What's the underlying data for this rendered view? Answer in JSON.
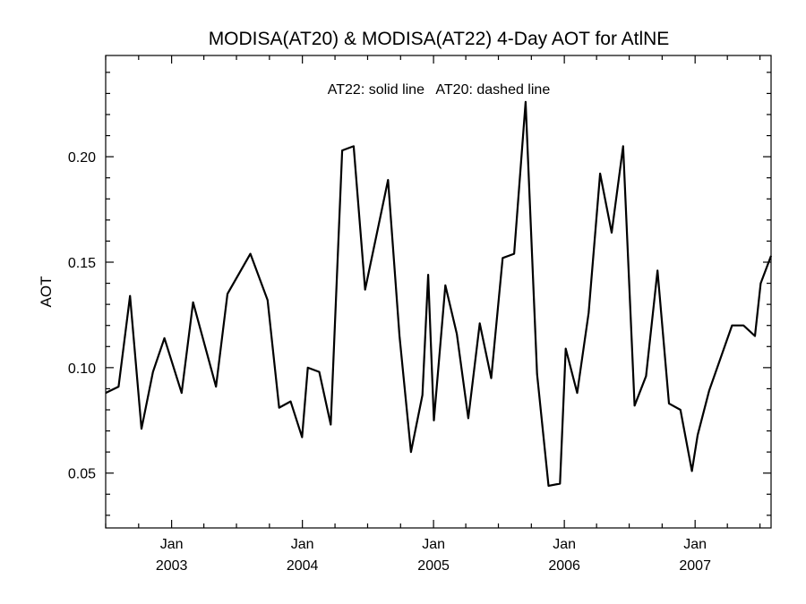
{
  "chart_data": {
    "type": "line",
    "title": "MODISA(AT20) & MODISA(AT22) 4-Day AOT for AtlNE",
    "annotation": "AT22: solid line   AT20: dashed line",
    "xlabel": "",
    "ylabel": "AOT",
    "x_ticks": [
      {
        "date": "2003-01-01",
        "month": "Jan",
        "year": "2003"
      },
      {
        "date": "2004-01-01",
        "month": "Jan",
        "year": "2004"
      },
      {
        "date": "2005-01-01",
        "month": "Jan",
        "year": "2005"
      },
      {
        "date": "2006-01-01",
        "month": "Jan",
        "year": "2006"
      },
      {
        "date": "2007-01-01",
        "month": "Jan",
        "year": "2007"
      }
    ],
    "xlim": [
      "2002-07-01",
      "2007-08-01"
    ],
    "ylim": [
      0.024,
      0.248
    ],
    "y_ticks": [
      "0.05",
      "0.10",
      "0.15",
      "0.20"
    ],
    "grid": false,
    "series": [
      {
        "name": "AT22",
        "style": "solid",
        "color": "#000000",
        "points": [
          [
            "2002-07-01",
            0.088
          ],
          [
            "2002-08-06",
            0.091
          ],
          [
            "2002-09-07",
            0.134
          ],
          [
            "2002-10-09",
            0.071
          ],
          [
            "2002-11-10",
            0.098
          ],
          [
            "2002-12-12",
            0.114
          ],
          [
            "2003-01-29",
            0.088
          ],
          [
            "2003-03-02",
            0.131
          ],
          [
            "2003-04-03",
            0.111
          ],
          [
            "2003-05-05",
            0.091
          ],
          [
            "2003-06-06",
            0.135
          ],
          [
            "2003-08-09",
            0.154
          ],
          [
            "2003-09-26",
            0.132
          ],
          [
            "2003-10-28",
            0.081
          ],
          [
            "2003-11-29",
            0.084
          ],
          [
            "2003-12-31",
            0.067
          ],
          [
            "2004-01-16",
            0.1
          ],
          [
            "2004-02-17",
            0.098
          ],
          [
            "2004-03-20",
            0.073
          ],
          [
            "2004-04-21",
            0.203
          ],
          [
            "2004-05-23",
            0.205
          ],
          [
            "2004-06-24",
            0.137
          ],
          [
            "2004-07-26",
            0.163
          ],
          [
            "2004-08-27",
            0.189
          ],
          [
            "2004-09-28",
            0.115
          ],
          [
            "2004-10-30",
            0.06
          ],
          [
            "2004-12-01",
            0.087
          ],
          [
            "2004-12-17",
            0.144
          ],
          [
            "2005-01-02",
            0.075
          ],
          [
            "2005-02-03",
            0.139
          ],
          [
            "2005-03-07",
            0.116
          ],
          [
            "2005-04-08",
            0.076
          ],
          [
            "2005-05-10",
            0.121
          ],
          [
            "2005-06-11",
            0.095
          ],
          [
            "2005-07-13",
            0.152
          ],
          [
            "2005-08-14",
            0.154
          ],
          [
            "2005-09-15",
            0.226
          ],
          [
            "2005-10-17",
            0.097
          ],
          [
            "2005-11-18",
            0.044
          ],
          [
            "2005-12-20",
            0.045
          ],
          [
            "2006-01-05",
            0.109
          ],
          [
            "2006-02-06",
            0.088
          ],
          [
            "2006-03-10",
            0.126
          ],
          [
            "2006-04-11",
            0.192
          ],
          [
            "2006-05-13",
            0.164
          ],
          [
            "2006-06-14",
            0.205
          ],
          [
            "2006-07-16",
            0.082
          ],
          [
            "2006-08-17",
            0.096
          ],
          [
            "2006-09-18",
            0.146
          ],
          [
            "2006-10-20",
            0.083
          ],
          [
            "2006-11-21",
            0.08
          ],
          [
            "2006-12-23",
            0.051
          ],
          [
            "2007-01-08",
            0.068
          ],
          [
            "2007-02-09",
            0.089
          ],
          [
            "2007-04-14",
            0.12
          ],
          [
            "2007-05-16",
            0.12
          ],
          [
            "2007-06-17",
            0.115
          ],
          [
            "2007-07-03",
            0.14
          ],
          [
            "2007-08-01",
            0.153
          ]
        ]
      }
    ]
  }
}
